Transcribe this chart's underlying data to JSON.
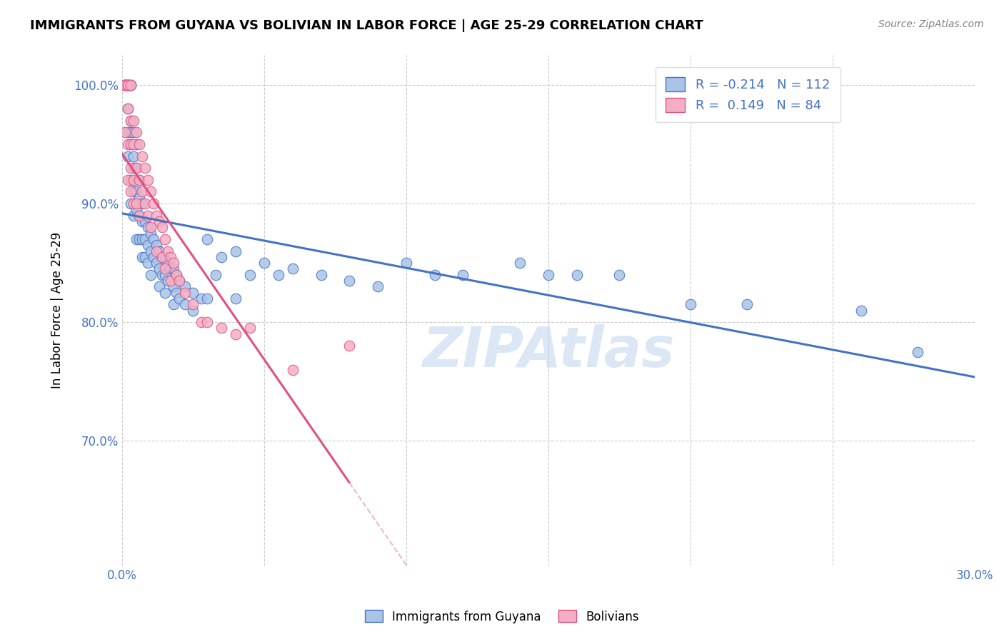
{
  "title": "IMMIGRANTS FROM GUYANA VS BOLIVIAN IN LABOR FORCE | AGE 25-29 CORRELATION CHART",
  "source_text": "Source: ZipAtlas.com",
  "ylabel": "In Labor Force | Age 25-29",
  "xlim": [
    0.0,
    0.3
  ],
  "ylim": [
    0.595,
    1.025
  ],
  "yticks": [
    0.7,
    0.8,
    0.9,
    1.0
  ],
  "yticklabels": [
    "70.0%",
    "80.0%",
    "90.0%",
    "100.0%"
  ],
  "xticks": [
    0.0,
    0.05,
    0.1,
    0.15,
    0.2,
    0.25,
    0.3
  ],
  "xticklabels": [
    "0.0%",
    "",
    "",
    "",
    "",
    "",
    "30.0%"
  ],
  "blue_fill": "#aac4e8",
  "blue_edge": "#4472c4",
  "pink_fill": "#f4afc4",
  "pink_edge": "#e05080",
  "blue_line_color": "#4472c4",
  "pink_line_color": "#e05080",
  "pink_dash_color": "#f0b8c8",
  "watermark": "ZIPAtlas",
  "watermark_color": "#b8d0ec",
  "legend_label1": "R = -0.214   N = 112",
  "legend_label2": "R =  0.149   N = 84",
  "bottom_label1": "Immigrants from Guyana",
  "bottom_label2": "Bolivians",
  "guyana_x": [
    0.001,
    0.001,
    0.001,
    0.002,
    0.002,
    0.002,
    0.002,
    0.002,
    0.002,
    0.003,
    0.003,
    0.003,
    0.003,
    0.003,
    0.003,
    0.003,
    0.004,
    0.004,
    0.004,
    0.004,
    0.004,
    0.005,
    0.005,
    0.005,
    0.005,
    0.005,
    0.006,
    0.006,
    0.006,
    0.006,
    0.007,
    0.007,
    0.007,
    0.007,
    0.008,
    0.008,
    0.008,
    0.009,
    0.009,
    0.009,
    0.01,
    0.01,
    0.01,
    0.011,
    0.011,
    0.012,
    0.012,
    0.013,
    0.013,
    0.013,
    0.014,
    0.014,
    0.015,
    0.015,
    0.015,
    0.016,
    0.016,
    0.017,
    0.018,
    0.018,
    0.018,
    0.019,
    0.019,
    0.02,
    0.02,
    0.022,
    0.022,
    0.025,
    0.025,
    0.028,
    0.03,
    0.03,
    0.033,
    0.035,
    0.04,
    0.04,
    0.045,
    0.05,
    0.055,
    0.06,
    0.07,
    0.08,
    0.09,
    0.1,
    0.11,
    0.12,
    0.14,
    0.15,
    0.16,
    0.175,
    0.2,
    0.22,
    0.26,
    0.28
  ],
  "guyana_y": [
    1.0,
    1.0,
    1.0,
    1.0,
    1.0,
    1.0,
    0.98,
    0.96,
    0.94,
    1.0,
    1.0,
    0.97,
    0.96,
    0.95,
    0.92,
    0.9,
    0.96,
    0.94,
    0.93,
    0.91,
    0.89,
    0.95,
    0.93,
    0.91,
    0.895,
    0.87,
    0.92,
    0.905,
    0.89,
    0.87,
    0.9,
    0.885,
    0.87,
    0.855,
    0.885,
    0.87,
    0.855,
    0.88,
    0.865,
    0.85,
    0.875,
    0.86,
    0.84,
    0.87,
    0.855,
    0.865,
    0.85,
    0.86,
    0.845,
    0.83,
    0.855,
    0.84,
    0.855,
    0.84,
    0.825,
    0.85,
    0.835,
    0.845,
    0.845,
    0.83,
    0.815,
    0.84,
    0.825,
    0.835,
    0.82,
    0.83,
    0.815,
    0.825,
    0.81,
    0.82,
    0.87,
    0.82,
    0.84,
    0.855,
    0.86,
    0.82,
    0.84,
    0.85,
    0.84,
    0.845,
    0.84,
    0.835,
    0.83,
    0.85,
    0.84,
    0.84,
    0.85,
    0.84,
    0.84,
    0.84,
    0.815,
    0.815,
    0.81,
    0.775
  ],
  "bolivia_x": [
    0.001,
    0.001,
    0.001,
    0.002,
    0.002,
    0.002,
    0.002,
    0.002,
    0.003,
    0.003,
    0.003,
    0.003,
    0.003,
    0.004,
    0.004,
    0.004,
    0.004,
    0.005,
    0.005,
    0.005,
    0.006,
    0.006,
    0.006,
    0.007,
    0.007,
    0.008,
    0.008,
    0.009,
    0.009,
    0.01,
    0.01,
    0.011,
    0.012,
    0.012,
    0.013,
    0.014,
    0.014,
    0.015,
    0.015,
    0.016,
    0.017,
    0.017,
    0.018,
    0.019,
    0.02,
    0.022,
    0.025,
    0.028,
    0.03,
    0.035,
    0.04,
    0.045,
    0.06,
    0.08
  ],
  "bolivia_y": [
    1.0,
    1.0,
    0.96,
    1.0,
    1.0,
    0.98,
    0.95,
    0.92,
    1.0,
    0.97,
    0.95,
    0.93,
    0.91,
    0.97,
    0.95,
    0.92,
    0.9,
    0.96,
    0.93,
    0.9,
    0.95,
    0.92,
    0.89,
    0.94,
    0.91,
    0.93,
    0.9,
    0.92,
    0.89,
    0.91,
    0.88,
    0.9,
    0.89,
    0.86,
    0.885,
    0.88,
    0.855,
    0.87,
    0.845,
    0.86,
    0.855,
    0.835,
    0.85,
    0.84,
    0.835,
    0.825,
    0.815,
    0.8,
    0.8,
    0.795,
    0.79,
    0.795,
    0.76,
    0.78
  ]
}
